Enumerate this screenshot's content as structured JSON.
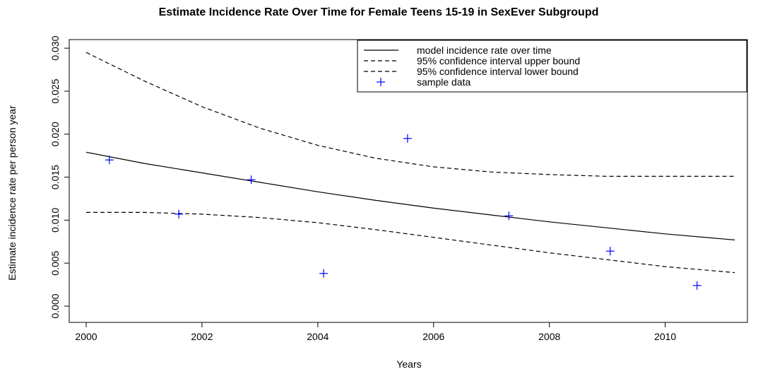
{
  "chart_data": {
    "type": "line",
    "title": "Estimate Incidence Rate Over Time for Female Teens 15-19 in SexEver Subgroupd",
    "xlabel": "Years",
    "ylabel": "Estimate incidence rate per person year",
    "xlim": [
      2000,
      2011.2
    ],
    "ylim": [
      0,
      0.031
    ],
    "xticks": [
      2000,
      2002,
      2004,
      2006,
      2008,
      2010
    ],
    "xtick_labels": [
      "2000",
      "2002",
      "2004",
      "2006",
      "2008",
      "2010"
    ],
    "yticks": [
      0,
      0.005,
      0.01,
      0.015,
      0.02,
      0.025,
      0.03
    ],
    "ytick_labels": [
      "0.000",
      "0.005",
      "0.010",
      "0.015",
      "0.020",
      "0.025",
      "0.030"
    ],
    "grid": false,
    "legend_position": "top-right",
    "series": [
      {
        "name": "model incidence rate over time",
        "style": "solid",
        "color": "#000000",
        "x": [
          2000,
          2001,
          2002,
          2003,
          2004,
          2005,
          2006,
          2007,
          2008,
          2009,
          2010,
          2011.2
        ],
        "y": [
          0.0179,
          0.0166,
          0.0155,
          0.0144,
          0.0133,
          0.0123,
          0.0114,
          0.0106,
          0.0098,
          0.0091,
          0.0084,
          0.0077
        ]
      },
      {
        "name": "95% confidence interval upper bound",
        "style": "dashed",
        "color": "#000000",
        "x": [
          2000,
          2001,
          2002,
          2003,
          2004,
          2005,
          2006,
          2007,
          2008,
          2009,
          2010,
          2011.2
        ],
        "y": [
          0.0295,
          0.0262,
          0.0232,
          0.0207,
          0.0187,
          0.0172,
          0.0162,
          0.0156,
          0.0153,
          0.0151,
          0.0151,
          0.0151
        ]
      },
      {
        "name": "95% confidence interval lower bound",
        "style": "dashed",
        "color": "#000000",
        "x": [
          2000,
          2001,
          2002,
          2003,
          2004,
          2005,
          2006,
          2007,
          2008,
          2009,
          2010,
          2011.2
        ],
        "y": [
          0.0109,
          0.0109,
          0.0107,
          0.0103,
          0.0097,
          0.0089,
          0.008,
          0.0071,
          0.0062,
          0.0054,
          0.0046,
          0.0039
        ]
      },
      {
        "name": "sample data",
        "style": "points",
        "marker": "+",
        "color": "#0000ff",
        "x": [
          2000.4,
          2001.6,
          2002.85,
          2004.1,
          2005.55,
          2007.3,
          2009.05,
          2010.55
        ],
        "y": [
          0.017,
          0.0107,
          0.0147,
          0.0038,
          0.0195,
          0.0105,
          0.0064,
          0.0024
        ]
      }
    ]
  }
}
